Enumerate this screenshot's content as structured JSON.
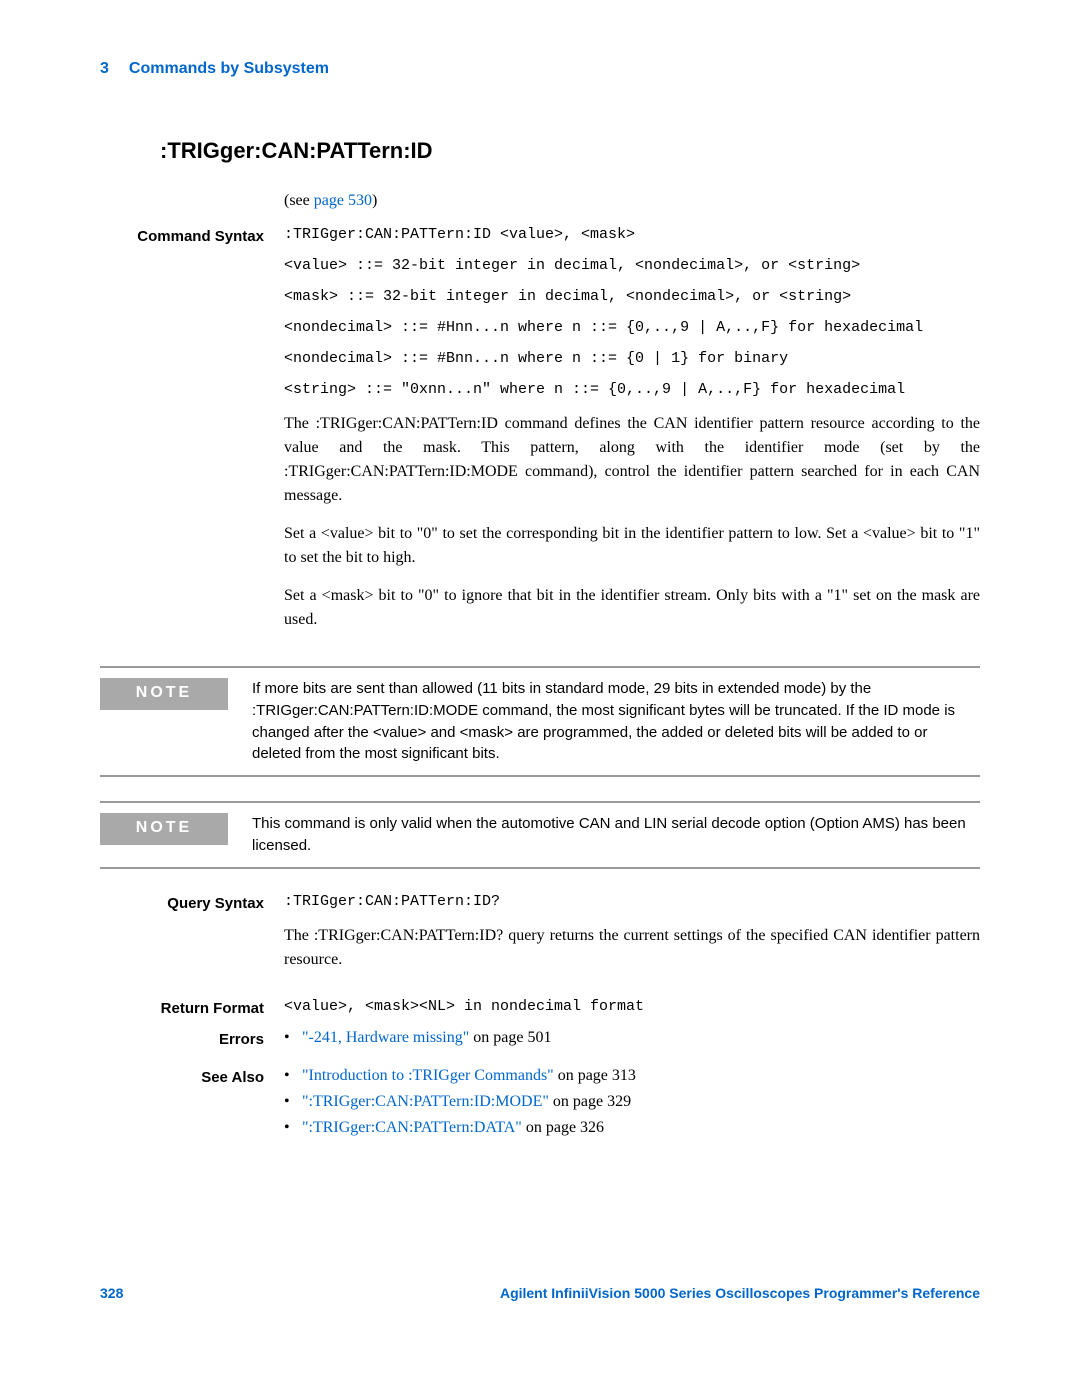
{
  "header": {
    "chapter_number": "3",
    "chapter_title": "Commands by Subsystem"
  },
  "title": ":TRIGger:CAN:PATTern:ID",
  "intro": {
    "prefix": "(see ",
    "link_text": "page 530",
    "suffix": ")"
  },
  "command_syntax": {
    "label": "Command Syntax",
    "lines": [
      ":TRIGger:CAN:PATTern:ID <value>, <mask>",
      "<value> ::= 32-bit integer in decimal, <nondecimal>, or <string>",
      "<mask> ::= 32-bit integer in decimal, <nondecimal>, or <string>",
      "<nondecimal> ::= #Hnn...n where n ::= {0,..,9 | A,..,F} for hexadecimal",
      "<nondecimal> ::= #Bnn...n where n ::= {0 | 1} for binary",
      "<string> ::= \"0xnn...n\" where n ::= {0,..,9 | A,..,F} for hexadecimal"
    ],
    "para1": "The :TRIGger:CAN:PATTern:ID command defines the CAN identifier pattern resource according to the value and the mask. This pattern, along with the identifier mode (set by the :TRIGger:CAN:PATTern:ID:MODE command), control the identifier pattern searched for in each CAN message.",
    "para2": "Set a <value> bit to \"0\" to set the corresponding bit in the identifier pattern to low. Set a <value> bit to \"1\" to set the bit to high.",
    "para3": "Set a <mask> bit to \"0\" to ignore that bit in the identifier stream. Only bits with a \"1\" set on the mask are used."
  },
  "note1": {
    "label": "NOTE",
    "text": "If more bits are sent than allowed (11 bits in standard mode, 29 bits in extended mode) by the :TRIGger:CAN:PATTern:ID:MODE command, the most significant bytes will be truncated. If the ID mode is changed after the <value> and <mask> are programmed, the added or deleted bits will be added to or deleted from the most significant bits."
  },
  "note2": {
    "label": "NOTE",
    "text": "This command is only valid when the automotive CAN and LIN serial decode option (Option AMS) has been licensed."
  },
  "query_syntax": {
    "label": "Query Syntax",
    "code": ":TRIGger:CAN:PATTern:ID?",
    "para": "The :TRIGger:CAN:PATTern:ID? query returns the current settings of the specified CAN identifier pattern resource."
  },
  "return_format": {
    "label": "Return Format",
    "code": "<value>, <mask><NL> in nondecimal format"
  },
  "errors": {
    "label": "Errors",
    "items": [
      {
        "link": "\"-241, Hardware missing\"",
        "suffix": " on page 501"
      }
    ]
  },
  "see_also": {
    "label": "See Also",
    "items": [
      {
        "link": "\"Introduction to :TRIGger Commands\"",
        "suffix": " on page 313"
      },
      {
        "link": "\":TRIGger:CAN:PATTern:ID:MODE\"",
        "suffix": " on page 329"
      },
      {
        "link": "\":TRIGger:CAN:PATTern:DATA\"",
        "suffix": " on page 326"
      }
    ]
  },
  "footer": {
    "page_number": "328",
    "reference": "Agilent InfiniiVision 5000 Series Oscilloscopes Programmer's Reference"
  }
}
